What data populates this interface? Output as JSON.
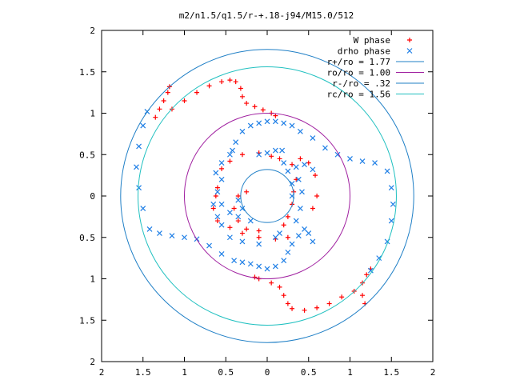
{
  "chart_data": {
    "type": "scatter",
    "title": "m2/n1.5/q1.5/r-+.18-j94/M15.0/512",
    "xlim": [
      -2,
      2
    ],
    "ylim": [
      -2,
      2
    ],
    "x_ticks": [
      -2,
      -1.5,
      -1,
      -0.5,
      0,
      0.5,
      1,
      1.5,
      2
    ],
    "y_ticks": [
      -2,
      -1.5,
      -1,
      -0.5,
      0,
      0.5,
      1,
      1.5,
      2
    ],
    "x_tick_labels": [
      "2",
      "1.5",
      "1",
      "0.5",
      "0",
      "0.5",
      "1",
      "1.5",
      "2"
    ],
    "y_tick_labels": [
      "2",
      "1.5",
      "1",
      "0.5",
      "0",
      "0.5",
      "1",
      "1.5",
      "2"
    ],
    "grid": false,
    "legend_position": "top-right",
    "series": [
      {
        "name": "W phase",
        "kind": "points",
        "marker": "+",
        "color": "#ff0000",
        "points": [
          [
            -1.18,
            1.32
          ],
          [
            -1.2,
            1.25
          ],
          [
            -1.25,
            1.15
          ],
          [
            -1.3,
            1.05
          ],
          [
            -1.35,
            0.95
          ],
          [
            -1.15,
            1.05
          ],
          [
            -1.0,
            1.15
          ],
          [
            -0.85,
            1.25
          ],
          [
            -0.7,
            1.33
          ],
          [
            -0.55,
            1.38
          ],
          [
            -0.45,
            1.4
          ],
          [
            -0.38,
            1.38
          ],
          [
            -0.32,
            1.3
          ],
          [
            -0.3,
            1.2
          ],
          [
            -0.25,
            1.12
          ],
          [
            -0.15,
            1.08
          ],
          [
            -0.05,
            1.04
          ],
          [
            0.05,
            1.0
          ],
          [
            0.1,
            0.97
          ],
          [
            -0.55,
            0.33
          ],
          [
            -0.45,
            0.42
          ],
          [
            -0.3,
            0.5
          ],
          [
            -0.1,
            0.52
          ],
          [
            0.05,
            0.48
          ],
          [
            0.15,
            0.45
          ],
          [
            0.3,
            0.38
          ],
          [
            0.35,
            0.2
          ],
          [
            0.32,
            0.05
          ],
          [
            0.3,
            -0.1
          ],
          [
            0.25,
            -0.25
          ],
          [
            0.2,
            -0.35
          ],
          [
            -0.1,
            -0.42
          ],
          [
            -0.25,
            -0.4
          ],
          [
            -0.35,
            -0.3
          ],
          [
            -0.4,
            -0.15
          ],
          [
            -0.35,
            0.0
          ],
          [
            -0.25,
            0.05
          ],
          [
            0.55,
            -0.15
          ],
          [
            0.6,
            0.0
          ],
          [
            0.58,
            0.25
          ],
          [
            0.5,
            0.4
          ],
          [
            0.4,
            0.45
          ],
          [
            0.25,
            -0.5
          ],
          [
            0.1,
            -0.52
          ],
          [
            -0.1,
            -0.5
          ],
          [
            -0.3,
            -0.45
          ],
          [
            -0.45,
            -0.38
          ],
          [
            -0.6,
            -0.3
          ],
          [
            -0.65,
            -0.15
          ],
          [
            -0.62,
            0.0
          ],
          [
            -0.6,
            0.1
          ],
          [
            -0.15,
            -0.98
          ],
          [
            -0.1,
            -1.0
          ],
          [
            0.05,
            -1.05
          ],
          [
            0.15,
            -1.1
          ],
          [
            0.2,
            -1.2
          ],
          [
            0.25,
            -1.3
          ],
          [
            0.3,
            -1.36
          ],
          [
            0.45,
            -1.38
          ],
          [
            0.6,
            -1.35
          ],
          [
            0.75,
            -1.3
          ],
          [
            0.9,
            -1.22
          ],
          [
            1.05,
            -1.15
          ],
          [
            1.15,
            -1.05
          ],
          [
            1.2,
            -0.95
          ],
          [
            1.25,
            -0.88
          ],
          [
            1.15,
            -1.2
          ],
          [
            1.18,
            -1.3
          ]
        ]
      },
      {
        "name": "drho phase",
        "kind": "points",
        "marker": "x",
        "color": "#1f7fe6",
        "points": [
          [
            -1.45,
            1.02
          ],
          [
            -1.5,
            0.85
          ],
          [
            -1.55,
            0.6
          ],
          [
            -1.58,
            0.35
          ],
          [
            -1.55,
            0.1
          ],
          [
            -1.5,
            -0.15
          ],
          [
            -1.42,
            -0.4
          ],
          [
            -1.3,
            -0.45
          ],
          [
            -1.15,
            -0.48
          ],
          [
            -1.0,
            -0.5
          ],
          [
            -0.85,
            -0.52
          ],
          [
            -0.7,
            -0.6
          ],
          [
            -0.55,
            -0.7
          ],
          [
            -0.4,
            -0.78
          ],
          [
            -0.3,
            -0.8
          ],
          [
            -0.2,
            -0.82
          ],
          [
            -0.1,
            -0.85
          ],
          [
            0.0,
            -0.88
          ],
          [
            0.1,
            -0.85
          ],
          [
            0.2,
            -0.78
          ],
          [
            0.25,
            -0.68
          ],
          [
            0.3,
            -0.58
          ],
          [
            0.38,
            -0.48
          ],
          [
            0.45,
            -0.4
          ],
          [
            0.5,
            -0.45
          ],
          [
            0.55,
            -0.55
          ],
          [
            1.25,
            -0.9
          ],
          [
            1.35,
            -0.75
          ],
          [
            1.45,
            -0.55
          ],
          [
            1.5,
            -0.3
          ],
          [
            1.52,
            -0.1
          ],
          [
            1.5,
            0.1
          ],
          [
            1.45,
            0.3
          ],
          [
            1.3,
            0.4
          ],
          [
            1.15,
            0.42
          ],
          [
            1.0,
            0.45
          ],
          [
            0.85,
            0.5
          ],
          [
            0.7,
            0.58
          ],
          [
            0.55,
            0.7
          ],
          [
            0.4,
            0.78
          ],
          [
            0.3,
            0.85
          ],
          [
            0.2,
            0.88
          ],
          [
            0.1,
            0.9
          ],
          [
            0.0,
            0.9
          ],
          [
            -0.1,
            0.88
          ],
          [
            -0.2,
            0.85
          ],
          [
            -0.3,
            0.78
          ],
          [
            -0.38,
            0.65
          ],
          [
            -0.42,
            0.55
          ],
          [
            -0.45,
            0.5
          ],
          [
            -0.65,
            -0.1
          ],
          [
            -0.6,
            -0.25
          ],
          [
            -0.55,
            -0.35
          ],
          [
            -0.45,
            -0.5
          ],
          [
            -0.3,
            -0.55
          ],
          [
            -0.1,
            -0.58
          ],
          [
            0.1,
            -0.5
          ],
          [
            0.15,
            -0.45
          ],
          [
            0.35,
            -0.3
          ],
          [
            0.4,
            -0.15
          ],
          [
            0.42,
            0.05
          ],
          [
            0.38,
            0.2
          ],
          [
            0.35,
            0.35
          ],
          [
            0.45,
            0.38
          ],
          [
            0.55,
            0.32
          ],
          [
            -0.55,
            0.2
          ],
          [
            -0.6,
            0.05
          ],
          [
            -0.55,
            -0.1
          ],
          [
            -0.45,
            -0.2
          ],
          [
            -0.35,
            -0.25
          ],
          [
            -0.2,
            -0.3
          ],
          [
            -0.1,
            0.5
          ],
          [
            0.0,
            0.52
          ],
          [
            0.1,
            0.55
          ],
          [
            0.18,
            0.55
          ],
          [
            0.2,
            0.4
          ],
          [
            0.25,
            0.3
          ],
          [
            0.3,
            0.15
          ],
          [
            0.3,
            0.0
          ],
          [
            -0.55,
            0.4
          ],
          [
            -0.62,
            0.28
          ],
          [
            -0.35,
            -0.05
          ],
          [
            -0.3,
            -0.15
          ]
        ]
      },
      {
        "name": "r+/ro = 1.77",
        "kind": "circle",
        "radius": 1.77,
        "color": "#1f7fc6"
      },
      {
        "name": "ro/ro = 1.00",
        "kind": "circle",
        "radius": 1.0,
        "color": "#a020a0"
      },
      {
        "name": "r-/ro = .32",
        "kind": "circle",
        "radius": 0.32,
        "color": "#1f7fc6"
      },
      {
        "name": "rc/ro = 1.56",
        "kind": "circle",
        "radius": 1.56,
        "color": "#20c0c0"
      }
    ]
  }
}
